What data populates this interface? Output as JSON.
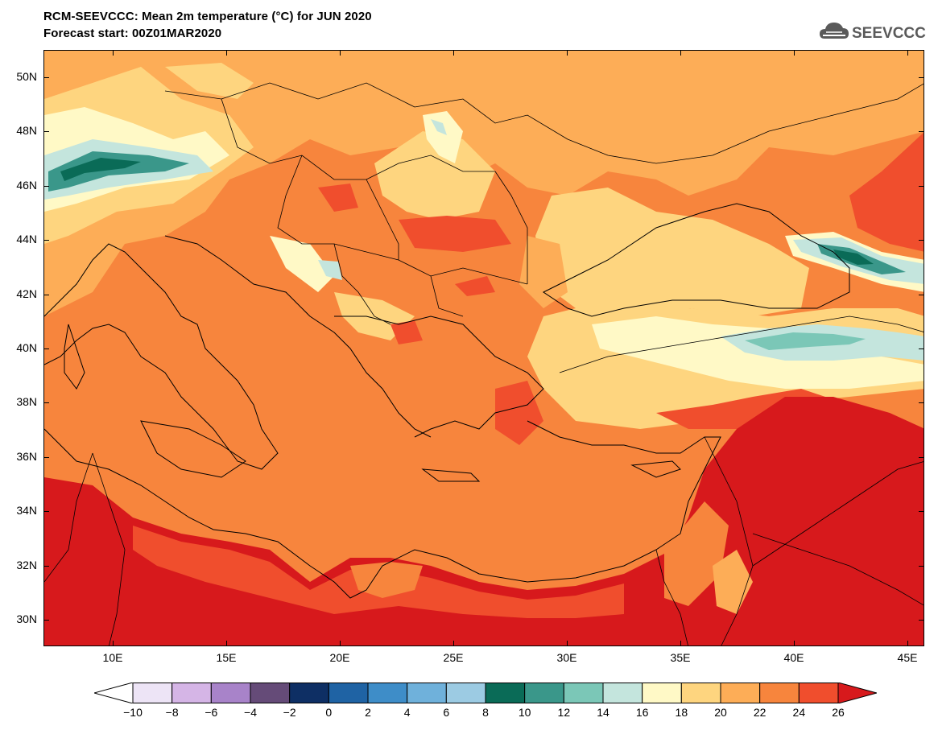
{
  "title": {
    "line1": "RCM-SEEVCCC: Mean 2m temperature (°C) for JUN 2020",
    "line2": "Forecast start: 00Z01MAR2020"
  },
  "logo": {
    "text": "SEEVCCC",
    "icon": "cloud-icon"
  },
  "axes": {
    "lat_labels": [
      "50N",
      "48N",
      "46N",
      "44N",
      "42N",
      "40N",
      "38N",
      "36N",
      "34N",
      "32N",
      "30N"
    ],
    "lon_labels": [
      "10E",
      "15E",
      "20E",
      "25E",
      "30E",
      "35E",
      "40E",
      "45E"
    ]
  },
  "colorbar": {
    "labels": [
      "−10",
      "−8",
      "−6",
      "−4",
      "−2",
      "0",
      "2",
      "4",
      "6",
      "8",
      "10",
      "12",
      "14",
      "16",
      "18",
      "20",
      "22",
      "24",
      "26"
    ],
    "colors": [
      "#ffffff",
      "#ede4f6",
      "#d5b5e6",
      "#a883c9",
      "#654b78",
      "#0e2f64",
      "#1f63a4",
      "#3e8dc8",
      "#6fb1db",
      "#9ccbe3",
      "#0a6b57",
      "#3a978a",
      "#7bc7b7",
      "#c4e5dd",
      "#fff9c6",
      "#fed57f",
      "#fdad57",
      "#f7853d",
      "#f04e2d",
      "#d7191c"
    ],
    "colors_map": {
      "t14_16": "#c4e5dd",
      "t16_18": "#fff9c6",
      "t18_20": "#fed57f",
      "t20_22": "#fdad57",
      "t22_24": "#f7853d",
      "t24_26": "#f04e2d",
      "t26": "#d7191c",
      "t12_14": "#7bc7b7",
      "t10_12": "#3a978a",
      "t8_10": "#0a6b57"
    }
  }
}
